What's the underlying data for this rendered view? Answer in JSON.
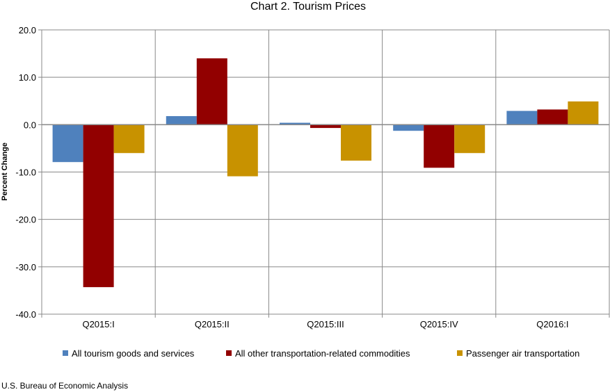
{
  "chart_data": {
    "type": "bar",
    "title": "Chart 2. Tourism Prices",
    "ylabel": "Percent Change",
    "xlabel": "",
    "ylim": [
      -40,
      20
    ],
    "yticks": [
      "20.0",
      "10.0",
      "0.0",
      "-10.0",
      "-20.0",
      "-30.0",
      "-40.0"
    ],
    "ytick_values": [
      20,
      10,
      0,
      -10,
      -20,
      -30,
      -40
    ],
    "grid": true,
    "legend_position": "bottom",
    "categories": [
      "Q2015:I",
      "Q2015:II",
      "Q2015:III",
      "Q2015:IV",
      "Q2016:I"
    ],
    "series": [
      {
        "name": "All tourism goods and services",
        "color": "#4f81bd",
        "values": [
          -7.9,
          1.8,
          0.4,
          -1.3,
          2.9
        ]
      },
      {
        "name": "All other transportation-related commodities",
        "color": "#920000",
        "values": [
          -34.3,
          14.0,
          -0.7,
          -9.1,
          3.2
        ]
      },
      {
        "name": "Passenger air transportation",
        "color": "#c89200",
        "values": [
          -6.0,
          -10.9,
          -7.6,
          -6.0,
          4.9
        ]
      }
    ]
  },
  "source": "U.S. Bureau of Economic Analysis"
}
